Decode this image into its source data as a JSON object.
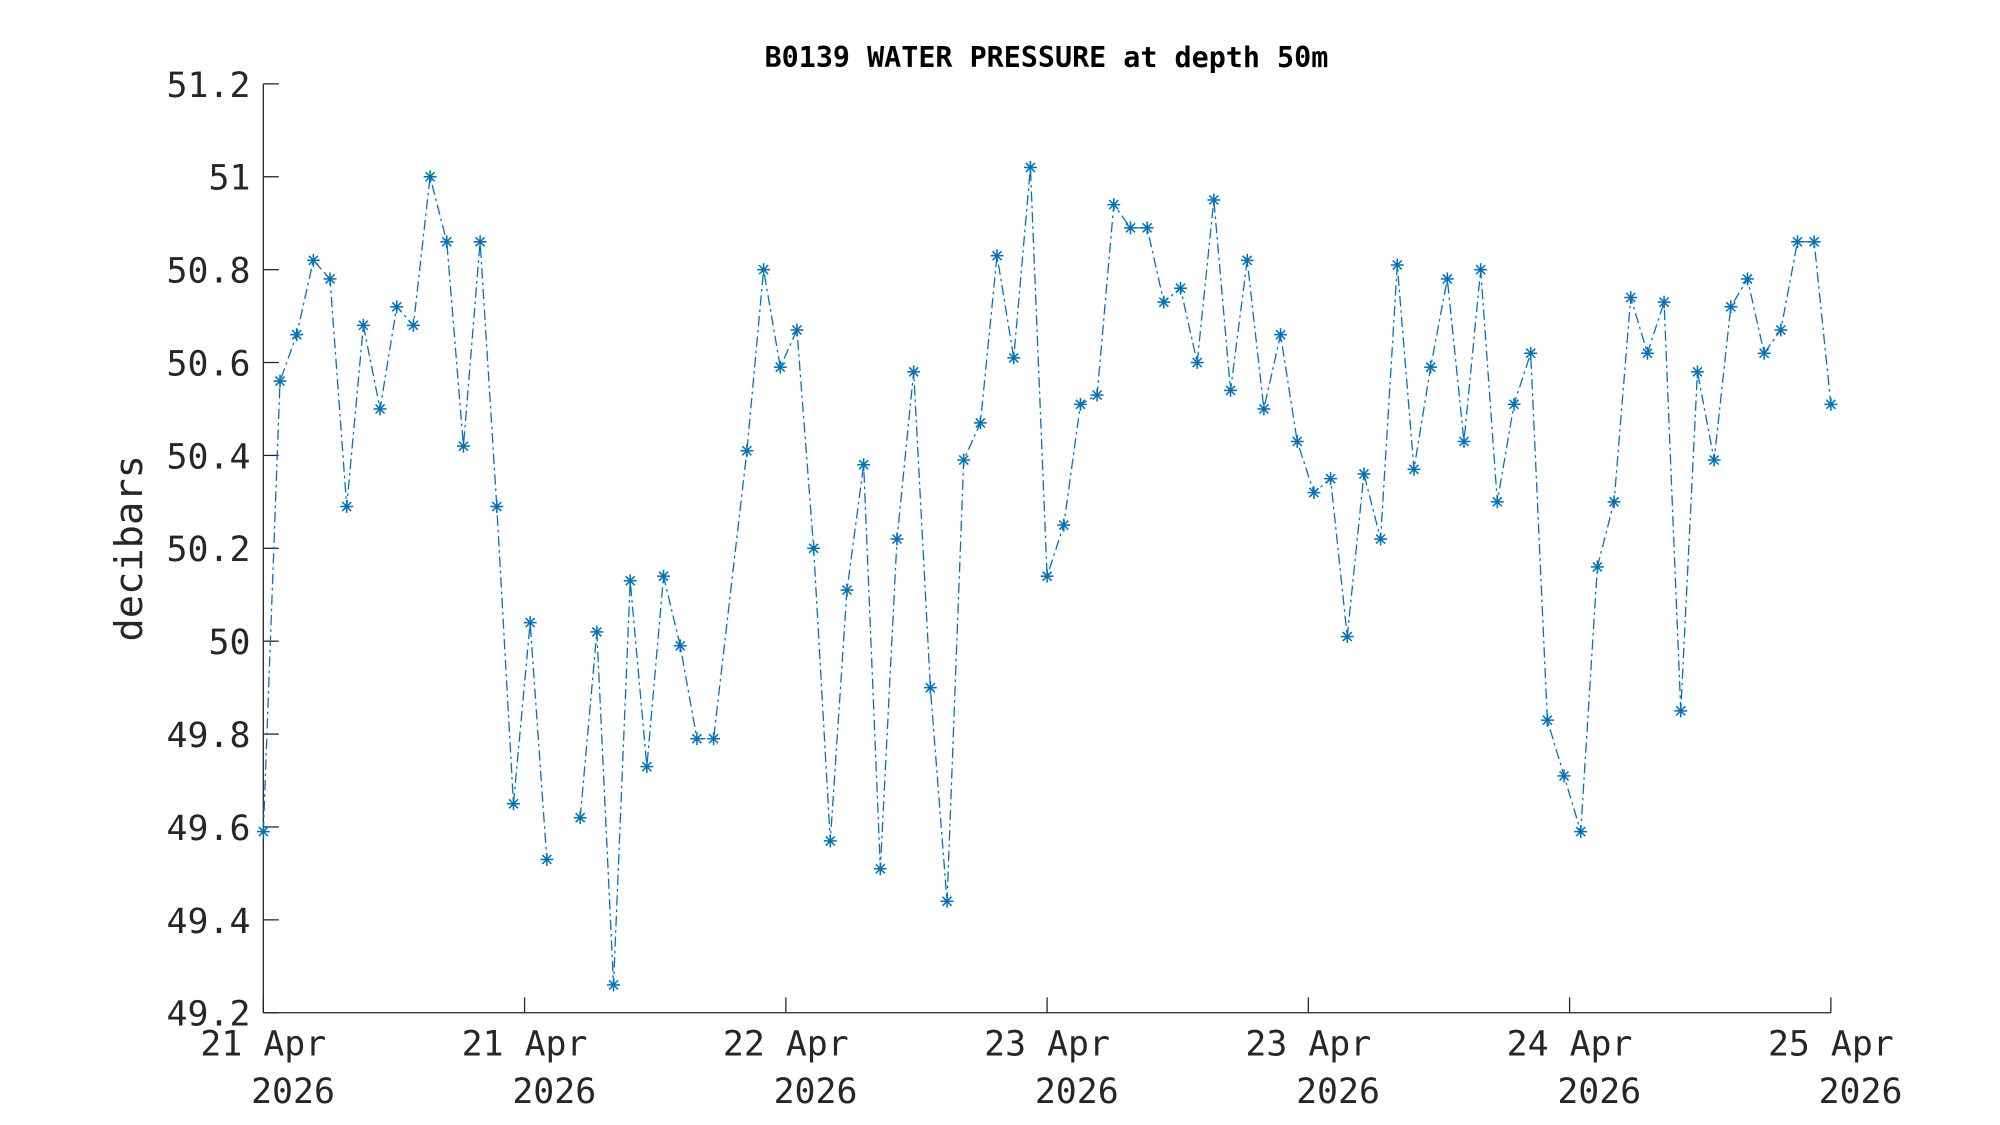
{
  "chart_data": {
    "type": "line",
    "title": "B0139 WATER PRESSURE at depth 50m",
    "xlabel": "",
    "ylabel": "decibars",
    "ylim": [
      49.2,
      51.2
    ],
    "xlim": [
      0,
      94
    ],
    "yticks": [
      "49.2",
      "49.4",
      "49.6",
      "49.8",
      "50",
      "50.2",
      "50.4",
      "50.6",
      "50.8",
      "51",
      "51.2"
    ],
    "xticks": [
      {
        "line1": "21 Apr",
        "line2": "2026"
      },
      {
        "line1": "21 Apr",
        "line2": "2026"
      },
      {
        "line1": "22 Apr",
        "line2": "2026"
      },
      {
        "line1": "23 Apr",
        "line2": "2026"
      },
      {
        "line1": "23 Apr",
        "line2": "2026"
      },
      {
        "line1": "24 Apr",
        "line2": "2026"
      },
      {
        "line1": "25 Apr",
        "line2": "2026"
      }
    ],
    "grid": false,
    "series": [
      {
        "name": "B0139 water pressure",
        "color": "#0072BD",
        "marker": "asterisk",
        "linestyle": "dash-dot",
        "x_unit": "hourly sample index",
        "x": [
          0,
          1,
          2,
          3,
          4,
          5,
          6,
          7,
          8,
          9,
          10,
          11,
          12,
          13,
          14,
          15,
          16,
          17,
          18,
          19,
          20,
          21,
          22,
          23,
          24,
          25,
          26,
          27,
          29,
          30,
          31,
          32,
          33,
          34,
          35,
          36,
          37,
          38,
          39,
          40,
          41,
          42,
          43,
          44,
          45,
          46,
          47,
          48,
          49,
          50,
          51,
          52,
          53,
          54,
          55,
          56,
          57,
          58,
          59,
          60,
          61,
          62,
          63,
          64,
          65,
          66,
          67,
          68,
          69,
          70,
          71,
          72,
          73,
          74,
          75,
          76,
          77,
          78,
          79,
          80,
          81,
          82,
          83,
          84,
          85,
          86,
          87,
          88,
          89,
          90,
          91,
          92,
          93,
          94
        ],
        "values": [
          49.59,
          50.56,
          50.66,
          50.82,
          50.78,
          50.29,
          50.68,
          50.5,
          50.72,
          50.68,
          51.0,
          50.86,
          50.42,
          50.86,
          50.29,
          49.65,
          50.04,
          49.53,
          null,
          49.62,
          50.02,
          49.26,
          50.13,
          49.73,
          50.14,
          49.99,
          49.79,
          49.79,
          50.41,
          50.8,
          50.59,
          50.67,
          50.2,
          49.57,
          50.11,
          50.38,
          49.51,
          50.22,
          50.58,
          49.9,
          49.44,
          50.39,
          50.47,
          50.83,
          50.61,
          51.02,
          50.14,
          50.25,
          50.51,
          50.53,
          50.94,
          50.89,
          50.89,
          50.73,
          50.76,
          50.6,
          50.95,
          50.54,
          50.82,
          50.5,
          50.66,
          50.43,
          50.32,
          50.35,
          50.01,
          50.36,
          50.22,
          50.81,
          50.37,
          50.59,
          50.78,
          50.43,
          50.8,
          50.3,
          50.51,
          50.62,
          49.83,
          49.71,
          49.59,
          50.16,
          50.3,
          50.74,
          50.62,
          50.73,
          49.85,
          50.58,
          50.39,
          50.72,
          50.78,
          50.62,
          50.67,
          50.86,
          50.86,
          50.51
        ]
      }
    ]
  }
}
